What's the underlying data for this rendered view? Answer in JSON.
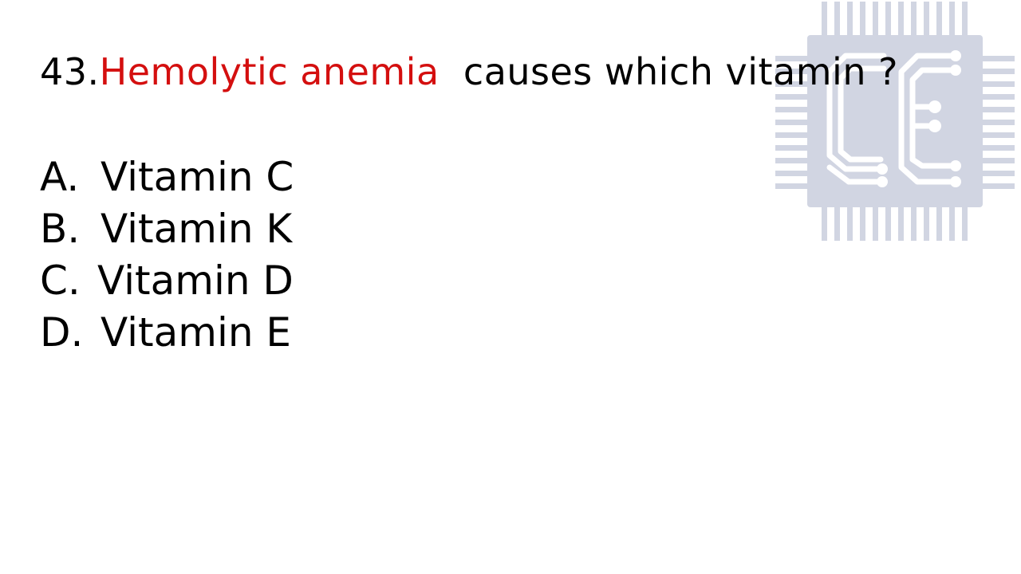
{
  "question": {
    "number": "43.",
    "highlight": "Hemolytic anemia",
    "rest": "  causes which vitamin ?",
    "highlight_color": "#d40f0f"
  },
  "options": [
    {
      "letter": "A.",
      "text": "Vitamin C"
    },
    {
      "letter": "B.",
      "text": "Vitamin K"
    },
    {
      "letter": "C.",
      "text": "Vitamin D"
    },
    {
      "letter": "D.",
      "text": "Vitamin E"
    }
  ],
  "watermark": {
    "icon": "chip-ce-logo-icon",
    "color": "#d1d5e2"
  }
}
